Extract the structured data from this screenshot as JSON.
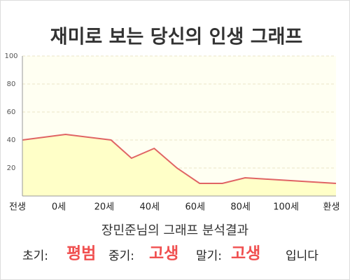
{
  "chart_data": {
    "type": "area_line",
    "title": "재미로 보는 당신의 인생 그래프",
    "x": [
      -16,
      3,
      23,
      32,
      42,
      52,
      62,
      72,
      82,
      92,
      102,
      112,
      122
    ],
    "values": [
      40,
      44,
      40,
      27,
      34,
      20,
      9,
      9,
      13,
      12,
      11,
      10,
      9
    ],
    "color": "#e06464",
    "fill": "#ffffc8",
    "xlim": [
      -16,
      122
    ],
    "xticks": [
      {
        "value": -20,
        "label": "전생"
      },
      {
        "value": 0,
        "label": "0세"
      },
      {
        "value": 20,
        "label": "20세"
      },
      {
        "value": 40,
        "label": "40세"
      },
      {
        "value": 60,
        "label": "60세"
      },
      {
        "value": 80,
        "label": "80세"
      },
      {
        "value": 100,
        "label": "100세"
      },
      {
        "value": 120,
        "label": "환생"
      }
    ],
    "ylim": [
      0,
      100
    ],
    "yticks": [
      20,
      40,
      60,
      80,
      100
    ],
    "grid": true
  },
  "summary": {
    "heading": "장민준님의 그래프 분석결과",
    "items": [
      {
        "label": "초기:",
        "value": "평범"
      },
      {
        "label": "중기:",
        "value": "고생"
      },
      {
        "label": "말기:",
        "value": "고생"
      }
    ],
    "ending": "입니다"
  }
}
